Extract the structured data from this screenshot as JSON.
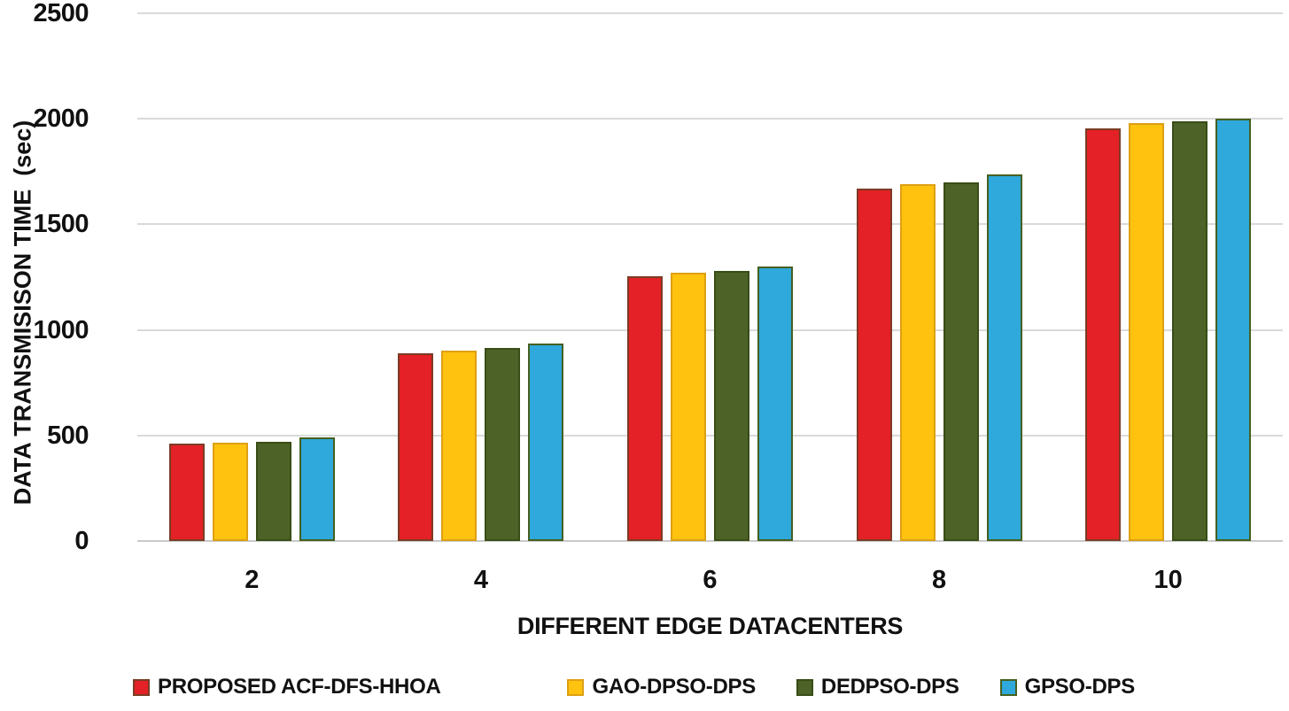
{
  "chart_data": {
    "type": "bar",
    "title": "",
    "xlabel": "DIFFERENT EDGE DATACENTERS",
    "ylabel": "DATA TRANSMISISON TIME  (sec)",
    "categories": [
      "2",
      "4",
      "6",
      "8",
      "10"
    ],
    "series": [
      {
        "name": "PROPOSED ACF-DFS-HHOA",
        "color": "#e32126",
        "border_color": "#7b3c25",
        "values": [
          460,
          890,
          1255,
          1670,
          1955
        ]
      },
      {
        "name": "GAO-DPSO-DPS",
        "color": "#ffc20e",
        "border_color": "#dda013",
        "values": [
          465,
          900,
          1270,
          1690,
          1980
        ]
      },
      {
        "name": "DEDPSO-DPS",
        "color": "#4d6227",
        "border_color": "#394d17",
        "values": [
          470,
          915,
          1280,
          1700,
          1990
        ]
      },
      {
        "name": "GPSO-DPS",
        "color": "#2fa8dc",
        "border_color": "#45601e",
        "values": [
          490,
          935,
          1300,
          1735,
          2000
        ]
      }
    ],
    "ylim": [
      0,
      2500
    ],
    "yticks": [
      0,
      500,
      1000,
      1500,
      2000,
      2500
    ],
    "grid": true,
    "gridline_color": "#d9d9d9",
    "axis_text_color": "#111111",
    "legend_position": "bottom"
  }
}
